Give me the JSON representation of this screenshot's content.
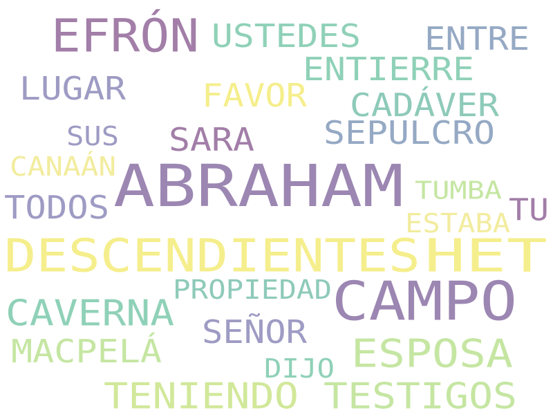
{
  "palette": {
    "purple": "#9c86b2",
    "mauve": "#a27ea8",
    "teal": "#8fd1b8",
    "blue_gray": "#95a9c4",
    "lavender": "#9e9bc4",
    "yellow": "#f5ee8c",
    "pale_yellow": "#f2ec9e",
    "light_green": "#c5e6a2",
    "lime": "#d1e89a",
    "sage": "#8ecab9"
  },
  "words": [
    {
      "text": "EFRÓN",
      "color": "#a27ea8"
    },
    {
      "text": "USTEDES",
      "color": "#8fd1b8"
    },
    {
      "text": "ENTRE",
      "color": "#95a9c4"
    },
    {
      "text": "ENTIERRE",
      "color": "#8fd1b8"
    },
    {
      "text": "LUGAR",
      "color": "#9e9bc4"
    },
    {
      "text": "FAVOR",
      "color": "#f5ee8c"
    },
    {
      "text": "CADÁVER",
      "color": "#8ecab9"
    },
    {
      "text": "SUS",
      "color": "#9e9bc4"
    },
    {
      "text": "SARA",
      "color": "#a27ea8"
    },
    {
      "text": "SEPULCRO",
      "color": "#95a9c4"
    },
    {
      "text": "CANAÁN",
      "color": "#f2ec9e"
    },
    {
      "text": "ABRAHAM",
      "color": "#9c86b2"
    },
    {
      "text": "TUMBA",
      "color": "#c5e6a2"
    },
    {
      "text": "TODOS",
      "color": "#9e9bc4"
    },
    {
      "text": "TU",
      "color": "#a27ea8"
    },
    {
      "text": "ESTABA",
      "color": "#f2ec9e"
    },
    {
      "text": "DESCENDIENTES",
      "color": "#f5ee8c"
    },
    {
      "text": "HET",
      "color": "#f5ee8c"
    },
    {
      "text": "PROPIEDAD",
      "color": "#8ecab9"
    },
    {
      "text": "CAMPO",
      "color": "#9c86b2"
    },
    {
      "text": "CAVERNA",
      "color": "#8fd1b8"
    },
    {
      "text": "SEÑOR",
      "color": "#9e9bc4"
    },
    {
      "text": "MACPELÁ",
      "color": "#c5e6a2"
    },
    {
      "text": "ESPOSA",
      "color": "#c5e6a2"
    },
    {
      "text": "DIJO",
      "color": "#8fd1b8"
    },
    {
      "text": "TENIENDO",
      "color": "#d1e89a"
    },
    {
      "text": "TESTIGOS",
      "color": "#c5e6a2"
    }
  ]
}
